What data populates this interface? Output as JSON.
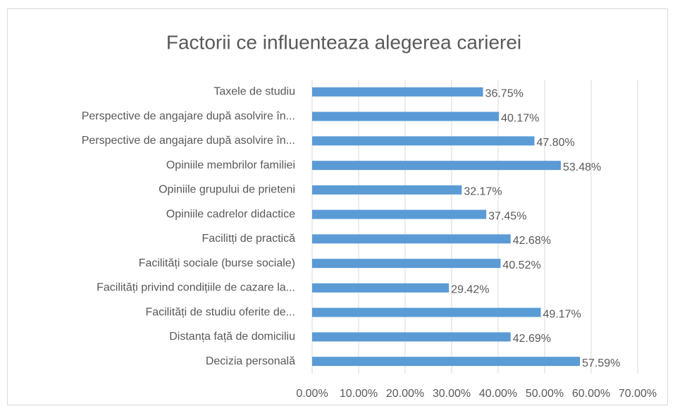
{
  "chart_data": {
    "type": "bar",
    "orientation": "horizontal",
    "title": "Factorii ce influenteaza alegerea carierei",
    "categories": [
      "Taxele de studiu",
      "Perspective de angajare după asolvire în...",
      "Perspective de angajare după asolvire în...",
      "Opiniile membrilor familiei",
      "Opiniile grupului de prieteni",
      "Opiniile cadrelor didactice",
      "Facilitți de practică",
      "Facilități sociale (burse sociale)",
      "Facilități privind condițiile de cazare la...",
      "Facilități de studiu oferite de...",
      "Distanța față de domiciliu",
      "Decizia personală"
    ],
    "values": [
      36.75,
      40.17,
      47.8,
      53.48,
      32.17,
      37.45,
      42.68,
      40.52,
      29.42,
      49.17,
      42.69,
      57.59
    ],
    "value_labels": [
      "36.75%",
      "40.17%",
      "47.80%",
      "53.48%",
      "32.17%",
      "37.45%",
      "42.68%",
      "40.52%",
      "29.42%",
      "49.17%",
      "42.69%",
      "57.59%"
    ],
    "color": "#5b9bd5",
    "xlim": [
      0,
      70
    ],
    "xticks": [
      {
        "value": 0,
        "label": "0.00%"
      },
      {
        "value": 10,
        "label": "10.00%"
      },
      {
        "value": 20,
        "label": "20.00%"
      },
      {
        "value": 30,
        "label": "30.00%"
      },
      {
        "value": 40,
        "label": "40.00%"
      },
      {
        "value": 50,
        "label": "50.00%"
      },
      {
        "value": 60,
        "label": "60.00%"
      },
      {
        "value": 70,
        "label": "70.00%"
      }
    ],
    "grid": true
  }
}
